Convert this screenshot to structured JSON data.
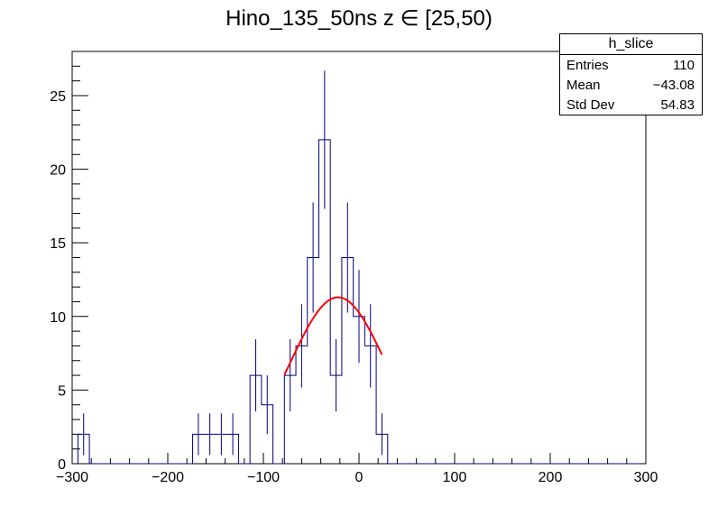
{
  "title": "Hino_135_50ns z  ∈ [25,50)",
  "stats": {
    "name": "h_slice",
    "rows": [
      {
        "label": "Entries",
        "value": "110"
      },
      {
        "label": "Mean",
        "value": "−43.08"
      },
      {
        "label": "Std Dev",
        "value": "54.83"
      }
    ]
  },
  "chart_data": {
    "type": "bar",
    "histogram": true,
    "xlim": [
      -300,
      300
    ],
    "ylim": [
      0,
      28
    ],
    "bin_width": 12,
    "x_ticks": [
      -300,
      -200,
      -100,
      0,
      100,
      200,
      300
    ],
    "x_tick_labels": [
      "−300",
      "−200",
      "−100",
      "0",
      "100",
      "200",
      "300"
    ],
    "y_ticks": [
      0,
      5,
      10,
      15,
      20,
      25
    ],
    "y_tick_labels": [
      "0",
      "5",
      "10",
      "15",
      "20",
      "25"
    ],
    "bins": [
      {
        "x": -288,
        "y": 2
      },
      {
        "x": -276,
        "y": 0
      },
      {
        "x": -264,
        "y": 0
      },
      {
        "x": -252,
        "y": 0
      },
      {
        "x": -240,
        "y": 0
      },
      {
        "x": -228,
        "y": 0
      },
      {
        "x": -216,
        "y": 0
      },
      {
        "x": -204,
        "y": 0
      },
      {
        "x": -192,
        "y": 0
      },
      {
        "x": -180,
        "y": 0
      },
      {
        "x": -168,
        "y": 2
      },
      {
        "x": -156,
        "y": 2
      },
      {
        "x": -144,
        "y": 2
      },
      {
        "x": -132,
        "y": 2
      },
      {
        "x": -120,
        "y": 0
      },
      {
        "x": -108,
        "y": 6
      },
      {
        "x": -96,
        "y": 4
      },
      {
        "x": -84,
        "y": 0
      },
      {
        "x": -72,
        "y": 6
      },
      {
        "x": -60,
        "y": 8
      },
      {
        "x": -48,
        "y": 14
      },
      {
        "x": -36,
        "y": 22
      },
      {
        "x": -24,
        "y": 6
      },
      {
        "x": -12,
        "y": 14
      },
      {
        "x": 0,
        "y": 10
      },
      {
        "x": 12,
        "y": 8
      },
      {
        "x": 24,
        "y": 2
      },
      {
        "x": 36,
        "y": 0
      },
      {
        "x": 48,
        "y": 0
      },
      {
        "x": 60,
        "y": 0
      },
      {
        "x": 72,
        "y": 0
      },
      {
        "x": 84,
        "y": 0
      },
      {
        "x": 96,
        "y": 0
      },
      {
        "x": 108,
        "y": 0
      },
      {
        "x": 120,
        "y": 0
      },
      {
        "x": 132,
        "y": 0
      },
      {
        "x": 144,
        "y": 0
      },
      {
        "x": 156,
        "y": 0
      },
      {
        "x": 168,
        "y": 0
      },
      {
        "x": 180,
        "y": 0
      },
      {
        "x": 192,
        "y": 0
      },
      {
        "x": 204,
        "y": 0
      },
      {
        "x": 216,
        "y": 0
      },
      {
        "x": 228,
        "y": 0
      },
      {
        "x": 240,
        "y": 0
      },
      {
        "x": 252,
        "y": 0
      },
      {
        "x": 264,
        "y": 0
      },
      {
        "x": 276,
        "y": 0
      },
      {
        "x": 288,
        "y": 0
      }
    ],
    "fit": {
      "type": "gaussian",
      "amplitude": 11.3,
      "mean": -22,
      "sigma": 50,
      "x_range": [
        -78,
        24
      ]
    },
    "colors": {
      "histogram": "#000080",
      "fit": "#ff0000"
    }
  }
}
